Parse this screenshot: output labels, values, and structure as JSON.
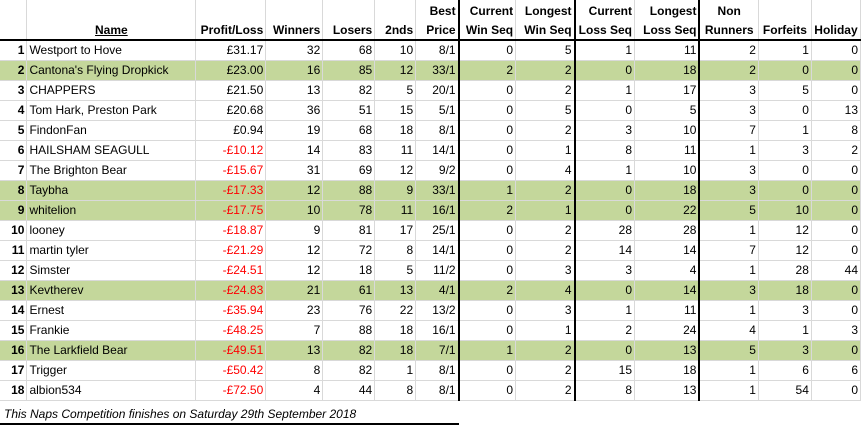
{
  "headers": {
    "name": "Name",
    "profit_loss": "Profit/Loss",
    "winners": "Winners",
    "losers": "Losers",
    "seconds": "2nds",
    "best_price_1": "Best",
    "best_price_2": "Price",
    "cur_win_1": "Current",
    "cur_win_2": "Win Seq",
    "long_win_1": "Longest",
    "long_win_2": "Win Seq",
    "cur_loss_1": "Current",
    "cur_loss_2": "Loss Seq",
    "long_loss_1": "Longest",
    "long_loss_2": "Loss Seq",
    "non_runners_1": "Non",
    "non_runners_2": "Runners",
    "forfeits": "Forfeits",
    "holiday": "Holiday"
  },
  "rows": [
    {
      "rank": "1",
      "name": "Westport to Hove",
      "pl": "£31.17",
      "neg": false,
      "winners": "32",
      "losers": "68",
      "seconds": "10",
      "best": "8/1",
      "cws": "0",
      "lws": "5",
      "cls": "1",
      "lls": "11",
      "nr": "2",
      "forfeits": "1",
      "holiday": "0",
      "hl": false
    },
    {
      "rank": "2",
      "name": "Cantona's Flying Dropkick",
      "pl": "£23.00",
      "neg": false,
      "winners": "16",
      "losers": "85",
      "seconds": "12",
      "best": "33/1",
      "cws": "2",
      "lws": "2",
      "cls": "0",
      "lls": "18",
      "nr": "2",
      "forfeits": "0",
      "holiday": "0",
      "hl": true
    },
    {
      "rank": "3",
      "name": "CHAPPERS",
      "pl": "£21.50",
      "neg": false,
      "winners": "13",
      "losers": "82",
      "seconds": "5",
      "best": "20/1",
      "cws": "0",
      "lws": "2",
      "cls": "1",
      "lls": "17",
      "nr": "3",
      "forfeits": "5",
      "holiday": "0",
      "hl": false
    },
    {
      "rank": "4",
      "name": "Tom Hark, Preston Park",
      "pl": "£20.68",
      "neg": false,
      "winners": "36",
      "losers": "51",
      "seconds": "15",
      "best": "5/1",
      "cws": "0",
      "lws": "5",
      "cls": "0",
      "lls": "5",
      "nr": "3",
      "forfeits": "0",
      "holiday": "13",
      "hl": false
    },
    {
      "rank": "5",
      "name": "FindonFan",
      "pl": "£0.94",
      "neg": false,
      "winners": "19",
      "losers": "68",
      "seconds": "18",
      "best": "8/1",
      "cws": "0",
      "lws": "2",
      "cls": "3",
      "lls": "10",
      "nr": "7",
      "forfeits": "1",
      "holiday": "8",
      "hl": false
    },
    {
      "rank": "6",
      "name": "HAILSHAM SEAGULL",
      "pl": "-£10.12",
      "neg": true,
      "winners": "14",
      "losers": "83",
      "seconds": "11",
      "best": "14/1",
      "cws": "0",
      "lws": "1",
      "cls": "8",
      "lls": "11",
      "nr": "1",
      "forfeits": "3",
      "holiday": "2",
      "hl": false
    },
    {
      "rank": "7",
      "name": "The Brighton Bear",
      "pl": "-£15.67",
      "neg": true,
      "winners": "31",
      "losers": "69",
      "seconds": "12",
      "best": "9/2",
      "cws": "0",
      "lws": "4",
      "cls": "1",
      "lls": "10",
      "nr": "3",
      "forfeits": "0",
      "holiday": "0",
      "hl": false
    },
    {
      "rank": "8",
      "name": "Taybha",
      "pl": "-£17.33",
      "neg": true,
      "winners": "12",
      "losers": "88",
      "seconds": "9",
      "best": "33/1",
      "cws": "1",
      "lws": "2",
      "cls": "0",
      "lls": "18",
      "nr": "3",
      "forfeits": "0",
      "holiday": "0",
      "hl": true
    },
    {
      "rank": "9",
      "name": "whitelion",
      "pl": "-£17.75",
      "neg": true,
      "winners": "10",
      "losers": "78",
      "seconds": "11",
      "best": "16/1",
      "cws": "2",
      "lws": "1",
      "cls": "0",
      "lls": "22",
      "nr": "5",
      "forfeits": "10",
      "holiday": "0",
      "hl": true
    },
    {
      "rank": "10",
      "name": "looney",
      "pl": "-£18.87",
      "neg": true,
      "winners": "9",
      "losers": "81",
      "seconds": "17",
      "best": "25/1",
      "cws": "0",
      "lws": "2",
      "cls": "28",
      "lls": "28",
      "nr": "1",
      "forfeits": "12",
      "holiday": "0",
      "hl": false
    },
    {
      "rank": "11",
      "name": "martin tyler",
      "pl": "-£21.29",
      "neg": true,
      "winners": "12",
      "losers": "72",
      "seconds": "8",
      "best": "14/1",
      "cws": "0",
      "lws": "2",
      "cls": "14",
      "lls": "14",
      "nr": "7",
      "forfeits": "12",
      "holiday": "0",
      "hl": false
    },
    {
      "rank": "12",
      "name": "Simster",
      "pl": "-£24.51",
      "neg": true,
      "winners": "12",
      "losers": "18",
      "seconds": "5",
      "best": "11/2",
      "cws": "0",
      "lws": "3",
      "cls": "3",
      "lls": "4",
      "nr": "1",
      "forfeits": "28",
      "holiday": "44",
      "hl": false
    },
    {
      "rank": "13",
      "name": "Kevtherev",
      "pl": "-£24.83",
      "neg": true,
      "winners": "21",
      "losers": "61",
      "seconds": "13",
      "best": "4/1",
      "cws": "2",
      "lws": "4",
      "cls": "0",
      "lls": "14",
      "nr": "3",
      "forfeits": "18",
      "holiday": "0",
      "hl": true
    },
    {
      "rank": "14",
      "name": "Ernest",
      "pl": "-£35.94",
      "neg": true,
      "winners": "23",
      "losers": "76",
      "seconds": "22",
      "best": "13/2",
      "cws": "0",
      "lws": "3",
      "cls": "1",
      "lls": "11",
      "nr": "1",
      "forfeits": "3",
      "holiday": "0",
      "hl": false
    },
    {
      "rank": "15",
      "name": "Frankie",
      "pl": "-£48.25",
      "neg": true,
      "winners": "7",
      "losers": "88",
      "seconds": "18",
      "best": "16/1",
      "cws": "0",
      "lws": "1",
      "cls": "2",
      "lls": "24",
      "nr": "4",
      "forfeits": "1",
      "holiday": "3",
      "hl": false
    },
    {
      "rank": "16",
      "name": "The Larkfield Bear",
      "pl": "-£49.51",
      "neg": true,
      "winners": "13",
      "losers": "82",
      "seconds": "18",
      "best": "7/1",
      "cws": "1",
      "lws": "2",
      "cls": "0",
      "lls": "13",
      "nr": "5",
      "forfeits": "3",
      "holiday": "0",
      "hl": true
    },
    {
      "rank": "17",
      "name": "Trigger",
      "pl": "-£50.42",
      "neg": true,
      "winners": "8",
      "losers": "82",
      "seconds": "1",
      "best": "8/1",
      "cws": "0",
      "lws": "2",
      "cls": "15",
      "lls": "18",
      "nr": "1",
      "forfeits": "6",
      "holiday": "6",
      "hl": false
    },
    {
      "rank": "18",
      "name": "albion534",
      "pl": "-£72.50",
      "neg": true,
      "winners": "4",
      "losers": "44",
      "seconds": "8",
      "best": "8/1",
      "cws": "0",
      "lws": "2",
      "cls": "8",
      "lls": "13",
      "nr": "1",
      "forfeits": "54",
      "holiday": "0",
      "hl": false
    }
  ],
  "footer": "This Naps Competition finishes on Saturday 29th September 2018",
  "colors": {
    "highlight": "#c4d79b",
    "negative": "#ff0000"
  }
}
